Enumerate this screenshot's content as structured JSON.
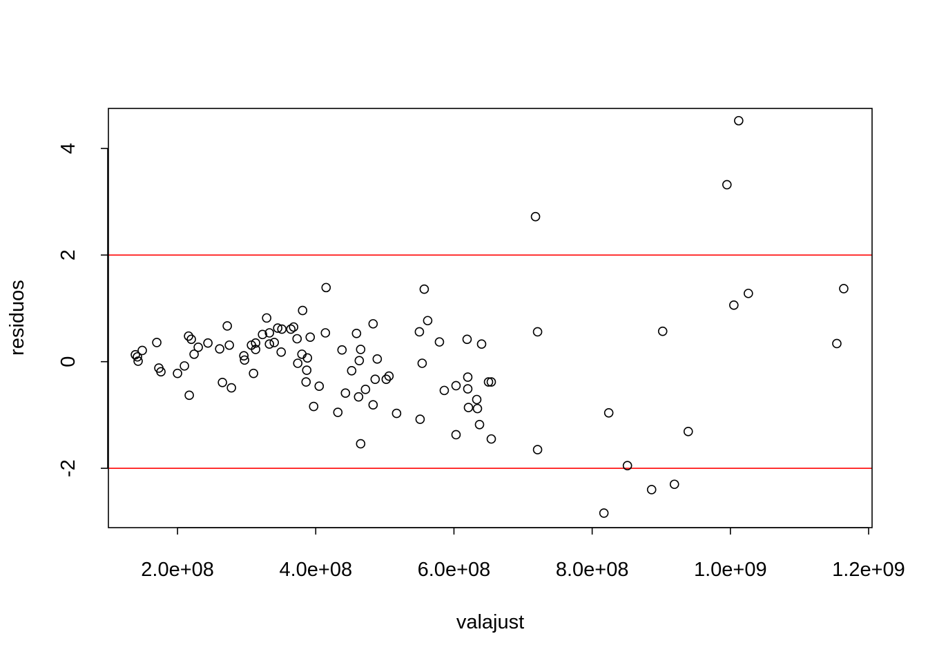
{
  "chart_data": {
    "type": "scatter",
    "title": "",
    "xlabel": "valajust",
    "ylabel": "residuos",
    "xlim": [
      100000000,
      1205000000
    ],
    "ylim": [
      -3.1,
      4.75
    ],
    "x_ticks": [
      {
        "value": 200000000,
        "label": "2.0e+08"
      },
      {
        "value": 400000000,
        "label": "4.0e+08"
      },
      {
        "value": 600000000,
        "label": "6.0e+08"
      },
      {
        "value": 800000000,
        "label": "8.0e+08"
      },
      {
        "value": 1000000000,
        "label": "1.0e+09"
      },
      {
        "value": 1200000000,
        "label": "1.2e+09"
      }
    ],
    "y_ticks": [
      {
        "value": -2,
        "label": "-2"
      },
      {
        "value": 0,
        "label": "0"
      },
      {
        "value": 2,
        "label": "2"
      },
      {
        "value": 4,
        "label": "4"
      }
    ],
    "reference_lines": [
      {
        "axis": "y",
        "value": 2,
        "color": "#ff0000"
      },
      {
        "axis": "y",
        "value": -2,
        "color": "#ff0000"
      }
    ],
    "grid": false,
    "point_color": "#000000",
    "points": [
      [
        139000000,
        0.13
      ],
      [
        142000000,
        0.09
      ],
      [
        143000000,
        0.01
      ],
      [
        149000000,
        0.21
      ],
      [
        170000000,
        0.36
      ],
      [
        173000000,
        -0.12
      ],
      [
        176000000,
        -0.19
      ],
      [
        200000000,
        -0.22
      ],
      [
        210000000,
        -0.08
      ],
      [
        216000000,
        0.48
      ],
      [
        217000000,
        -0.63
      ],
      [
        220000000,
        0.42
      ],
      [
        224000000,
        0.14
      ],
      [
        230000000,
        0.27
      ],
      [
        244000000,
        0.35
      ],
      [
        261000000,
        0.24
      ],
      [
        265000000,
        -0.39
      ],
      [
        272000000,
        0.67
      ],
      [
        275000000,
        0.31
      ],
      [
        278000000,
        -0.49
      ],
      [
        296000000,
        0.11
      ],
      [
        297000000,
        0.03
      ],
      [
        307000000,
        0.31
      ],
      [
        310000000,
        -0.22
      ],
      [
        313000000,
        0.35
      ],
      [
        313000000,
        0.23
      ],
      [
        323000000,
        0.51
      ],
      [
        329000000,
        0.82
      ],
      [
        333000000,
        0.33
      ],
      [
        333000000,
        0.54
      ],
      [
        340000000,
        0.36
      ],
      [
        345000000,
        0.63
      ],
      [
        350000000,
        0.18
      ],
      [
        351000000,
        0.61
      ],
      [
        364000000,
        0.61
      ],
      [
        368000000,
        0.65
      ],
      [
        373000000,
        0.43
      ],
      [
        374000000,
        -0.03
      ],
      [
        380000000,
        0.14
      ],
      [
        381000000,
        0.96
      ],
      [
        386000000,
        -0.38
      ],
      [
        387000000,
        -0.16
      ],
      [
        388000000,
        0.07
      ],
      [
        392000000,
        0.46
      ],
      [
        397000000,
        -0.84
      ],
      [
        405000000,
        -0.46
      ],
      [
        414000000,
        0.54
      ],
      [
        415000000,
        1.39
      ],
      [
        432000000,
        -0.95
      ],
      [
        438000000,
        0.22
      ],
      [
        443000000,
        -0.59
      ],
      [
        452000000,
        -0.17
      ],
      [
        459000000,
        0.53
      ],
      [
        462000000,
        -0.66
      ],
      [
        463000000,
        0.02
      ],
      [
        465000000,
        0.23
      ],
      [
        465000000,
        -1.54
      ],
      [
        472000000,
        -0.52
      ],
      [
        483000000,
        0.71
      ],
      [
        483000000,
        -0.81
      ],
      [
        486000000,
        -0.33
      ],
      [
        489000000,
        0.05
      ],
      [
        502000000,
        -0.33
      ],
      [
        506000000,
        -0.27
      ],
      [
        517000000,
        -0.97
      ],
      [
        550000000,
        0.56
      ],
      [
        551000000,
        -1.08
      ],
      [
        554000000,
        -0.03
      ],
      [
        557000000,
        1.36
      ],
      [
        562000000,
        0.77
      ],
      [
        579000000,
        0.37
      ],
      [
        586000000,
        -0.54
      ],
      [
        603000000,
        -1.37
      ],
      [
        603000000,
        -0.45
      ],
      [
        619000000,
        0.42
      ],
      [
        620000000,
        -0.29
      ],
      [
        620000000,
        -0.51
      ],
      [
        621000000,
        -0.86
      ],
      [
        633000000,
        -0.71
      ],
      [
        634000000,
        -0.88
      ],
      [
        637000000,
        -1.18
      ],
      [
        640000000,
        0.33
      ],
      [
        650000000,
        -0.38
      ],
      [
        654000000,
        -0.38
      ],
      [
        654000000,
        -1.45
      ],
      [
        718000000,
        2.72
      ],
      [
        721000000,
        0.56
      ],
      [
        721000000,
        -1.65
      ],
      [
        817000000,
        -2.84
      ],
      [
        824000000,
        -0.96
      ],
      [
        851000000,
        -1.95
      ],
      [
        886000000,
        -2.4
      ],
      [
        902000000,
        0.57
      ],
      [
        919000000,
        -2.3
      ],
      [
        939000000,
        -1.31
      ],
      [
        995000000,
        3.32
      ],
      [
        1005000000,
        1.06
      ],
      [
        1012000000,
        4.52
      ],
      [
        1026000000,
        1.28
      ],
      [
        1154000000,
        0.34
      ],
      [
        1164000000,
        1.37
      ]
    ]
  }
}
